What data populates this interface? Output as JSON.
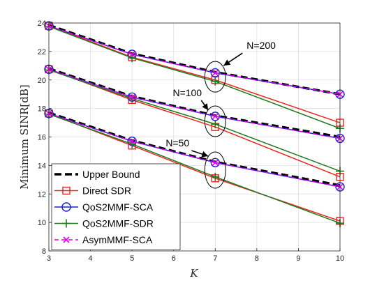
{
  "chart_data": {
    "type": "line",
    "title": "",
    "xlabel": "K",
    "ylabel": "Minimum SINR[dB]",
    "xlim": [
      3,
      10
    ],
    "ylim": [
      8,
      24
    ],
    "xticks": [
      3,
      4,
      5,
      6,
      7,
      8,
      9,
      10
    ],
    "yticks": [
      8,
      10,
      12,
      14,
      16,
      18,
      20,
      22,
      24
    ],
    "grid": true,
    "legend_position": "bottom-left",
    "x": [
      3,
      5,
      7,
      10
    ],
    "series": [
      {
        "name": "Upper Bound",
        "color": "#000000",
        "style": "dashed",
        "marker": "none",
        "groups": {
          "N=200": [
            23.85,
            21.85,
            20.55,
            19.0
          ],
          "N=100": [
            20.8,
            18.85,
            17.5,
            16.0
          ],
          "N=50": [
            17.7,
            15.75,
            14.25,
            12.6
          ]
        }
      },
      {
        "name": "Direct SDR",
        "color": "#e8261c",
        "style": "solid",
        "marker": "square",
        "groups": {
          "N=200": [
            23.8,
            21.6,
            20.0,
            17.0
          ],
          "N=100": [
            20.75,
            18.6,
            16.7,
            13.2
          ],
          "N=50": [
            17.65,
            15.4,
            13.1,
            10.1
          ]
        }
      },
      {
        "name": "QoS2MMF-SCA",
        "color": "#1f1fd1",
        "style": "solid",
        "marker": "circle",
        "groups": {
          "N=200": [
            23.8,
            21.8,
            20.5,
            19.0
          ],
          "N=100": [
            20.75,
            18.8,
            17.45,
            15.9
          ],
          "N=50": [
            17.65,
            15.7,
            14.2,
            12.5
          ]
        }
      },
      {
        "name": "QoS2MMF-SDR",
        "color": "#1e7a1e",
        "style": "solid",
        "marker": "plus",
        "groups": {
          "N=200": [
            23.75,
            21.55,
            19.9,
            16.6
          ],
          "N=100": [
            20.7,
            18.7,
            16.9,
            13.6
          ],
          "N=50": [
            17.6,
            15.5,
            13.2,
            9.95
          ]
        }
      },
      {
        "name": "AsymMMF-SCA",
        "color": "#e600e6",
        "style": "dashed",
        "marker": "x",
        "groups": {
          "N=200": [
            23.8,
            21.8,
            20.5,
            19.0
          ],
          "N=100": [
            20.75,
            18.8,
            17.45,
            15.9
          ],
          "N=50": [
            17.65,
            15.7,
            14.2,
            12.5
          ]
        }
      }
    ],
    "annotations": [
      {
        "text": "N=200",
        "group": "N=200",
        "at_x": 7
      },
      {
        "text": "N=100",
        "group": "N=100",
        "at_x": 7
      },
      {
        "text": "N=50",
        "group": "N=50",
        "at_x": 7
      }
    ]
  }
}
